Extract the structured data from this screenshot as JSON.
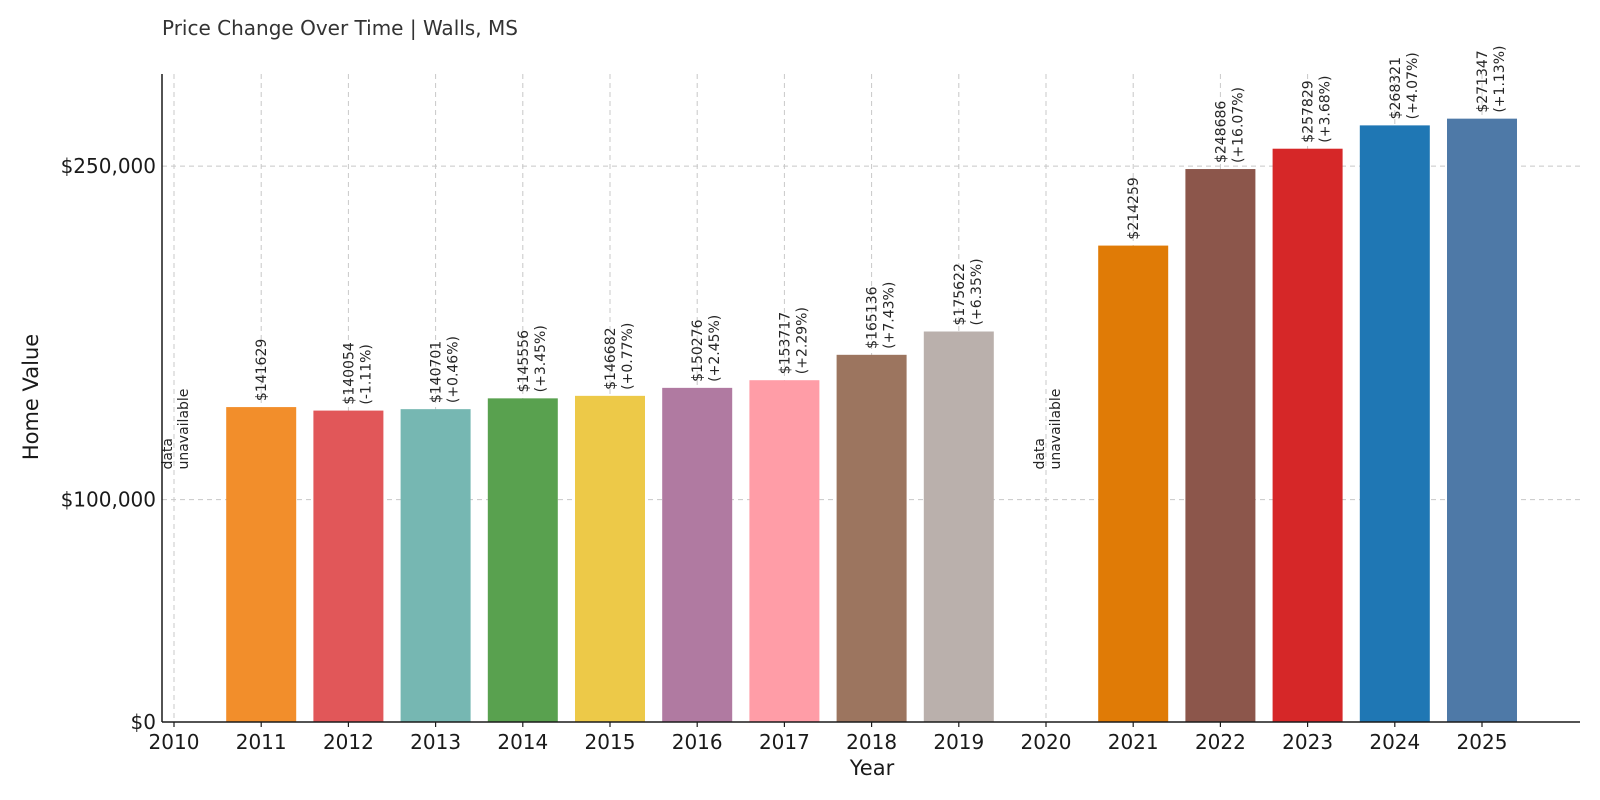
{
  "chart_data": {
    "type": "bar",
    "title": "Price Change Over Time | Walls, MS",
    "xlabel": "Year",
    "ylabel": "Home Value",
    "ylim": [
      0,
      285000
    ],
    "yticks": [
      {
        "value": 0,
        "label": "$0"
      },
      {
        "value": 100000,
        "label": "$100,000"
      },
      {
        "value": 250000,
        "label": "$250,000"
      }
    ],
    "grid": true,
    "categories": [
      "2010",
      "2011",
      "2012",
      "2013",
      "2014",
      "2015",
      "2016",
      "2017",
      "2018",
      "2019",
      "2020",
      "2021",
      "2022",
      "2023",
      "2024",
      "2025"
    ],
    "values": [
      null,
      141629,
      140054,
      140701,
      145556,
      146682,
      150276,
      153717,
      165136,
      175622,
      null,
      214259,
      248686,
      257829,
      268321,
      271347
    ],
    "value_labels": [
      null,
      "$141629",
      "$140054",
      "$140701",
      "$145556",
      "$146682",
      "$150276",
      "$153717",
      "$165136",
      "$175622",
      null,
      "$214259",
      "$248686",
      "$257829",
      "$268321",
      "$271347"
    ],
    "change_labels": [
      null,
      null,
      "(-1.11%)",
      "(+0.46%)",
      "(+3.45%)",
      "(+0.77%)",
      "(+2.45%)",
      "(+2.29%)",
      "(+7.43%)",
      "(+6.35%)",
      null,
      null,
      "(+16.07%)",
      "(+3.68%)",
      "(+4.07%)",
      "(+1.13%)"
    ],
    "missing_label": [
      "data",
      "unavailable"
    ],
    "colors": [
      "#ffffff",
      "#f28e2b",
      "#e15759",
      "#76b7b2",
      "#59a14f",
      "#edc948",
      "#b07aa1",
      "#ff9da7",
      "#9c755f",
      "#bab0ac",
      "#ffffff",
      "#e07b06",
      "#8c564b",
      "#d62728",
      "#1f77b4",
      "#4e79a7"
    ]
  }
}
